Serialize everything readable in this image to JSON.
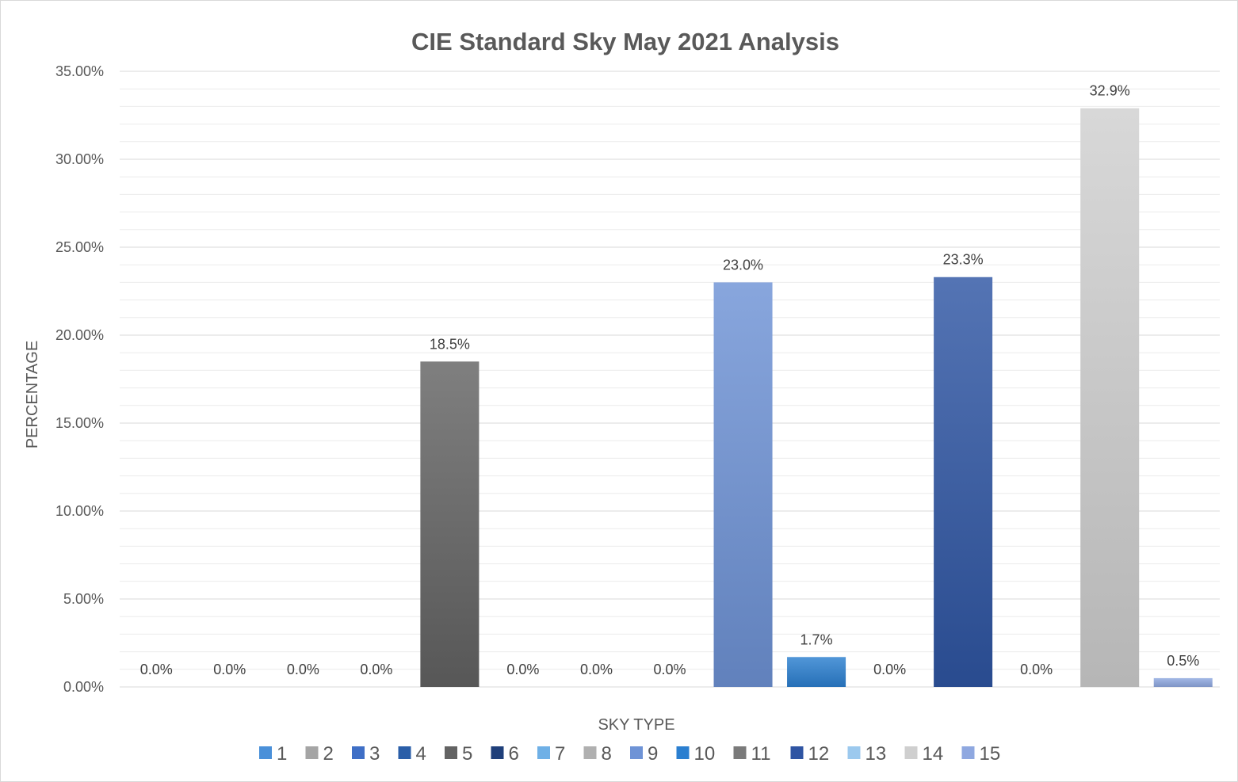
{
  "chart_data": {
    "type": "bar",
    "title": "CIE Standard Sky May 2021 Analysis",
    "xlabel": "SKY TYPE",
    "ylabel": "PERCENTAGE",
    "ylim": [
      0,
      35
    ],
    "yticks": [
      "0.00%",
      "5.00%",
      "10.00%",
      "15.00%",
      "20.00%",
      "25.00%",
      "30.00%",
      "35.00%"
    ],
    "grid": true,
    "legend": "bottom",
    "categories": [
      "1",
      "2",
      "3",
      "4",
      "5",
      "6",
      "7",
      "8",
      "9",
      "10",
      "11",
      "12",
      "13",
      "14",
      "15"
    ],
    "values": [
      0.0,
      0.0,
      0.0,
      0.0,
      18.5,
      0.0,
      0.0,
      0.0,
      23.0,
      1.7,
      0.0,
      23.3,
      0.0,
      32.9,
      0.5
    ],
    "data_labels": [
      "0.0%",
      "0.0%",
      "0.0%",
      "0.0%",
      "18.5%",
      "0.0%",
      "0.0%",
      "0.0%",
      "23.0%",
      "1.7%",
      "0.0%",
      "23.3%",
      "0.0%",
      "32.9%",
      "0.5%"
    ],
    "colors": [
      "#4a90d9",
      "#a5a5a5",
      "#3f6fc6",
      "#2a5ea8",
      "#636363",
      "#1f3f7a",
      "#6fb0e6",
      "#b0b0b0",
      "#6e93d6",
      "#2b7fd0",
      "#7a7a7a",
      "#2f55a3",
      "#9cc9ee",
      "#cfcfcf",
      "#8fa8e0"
    ]
  }
}
